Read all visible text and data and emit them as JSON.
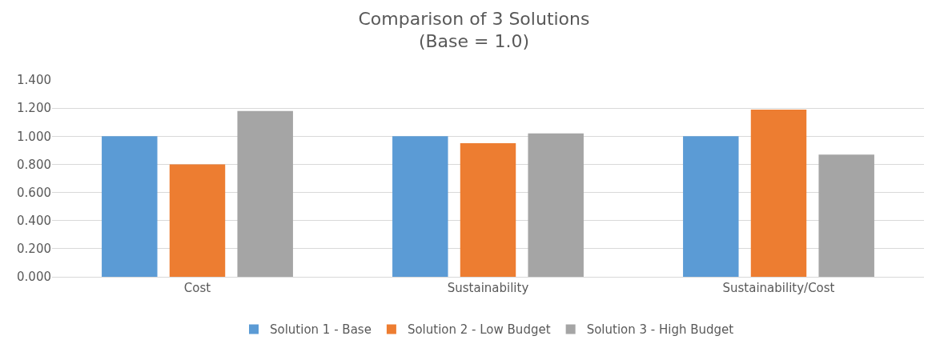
{
  "chart_data": {
    "type": "bar",
    "title": "Comparison of 3 Solutions\n(Base = 1.0)",
    "categories": [
      "Cost",
      "Sustainability",
      "Sustainability/Cost"
    ],
    "series": [
      {
        "name": "Solution 1 - Base",
        "color": "#5b9bd5",
        "values": [
          1.0,
          1.0,
          1.0
        ]
      },
      {
        "name": "Solution 2 - Low Budget",
        "color": "#ed7d31",
        "values": [
          0.8,
          0.95,
          1.19
        ]
      },
      {
        "name": "Solution 3 - High Budget",
        "color": "#a5a5a5",
        "values": [
          1.18,
          1.02,
          0.87
        ]
      }
    ],
    "ylim": [
      0,
      1.4
    ],
    "yticks": [
      {
        "value": 0,
        "label": "0.000"
      },
      {
        "value": 0.2,
        "label": "0.200"
      },
      {
        "value": 0.4,
        "label": "0.400"
      },
      {
        "value": 0.6,
        "label": "0.600"
      },
      {
        "value": 0.8,
        "label": "0.800"
      },
      {
        "value": 1.0,
        "label": "1.000"
      },
      {
        "value": 1.2,
        "label": "1.200"
      },
      {
        "value": 1.4,
        "label": "1.400"
      }
    ],
    "grid": "y",
    "legend": "bottom"
  }
}
